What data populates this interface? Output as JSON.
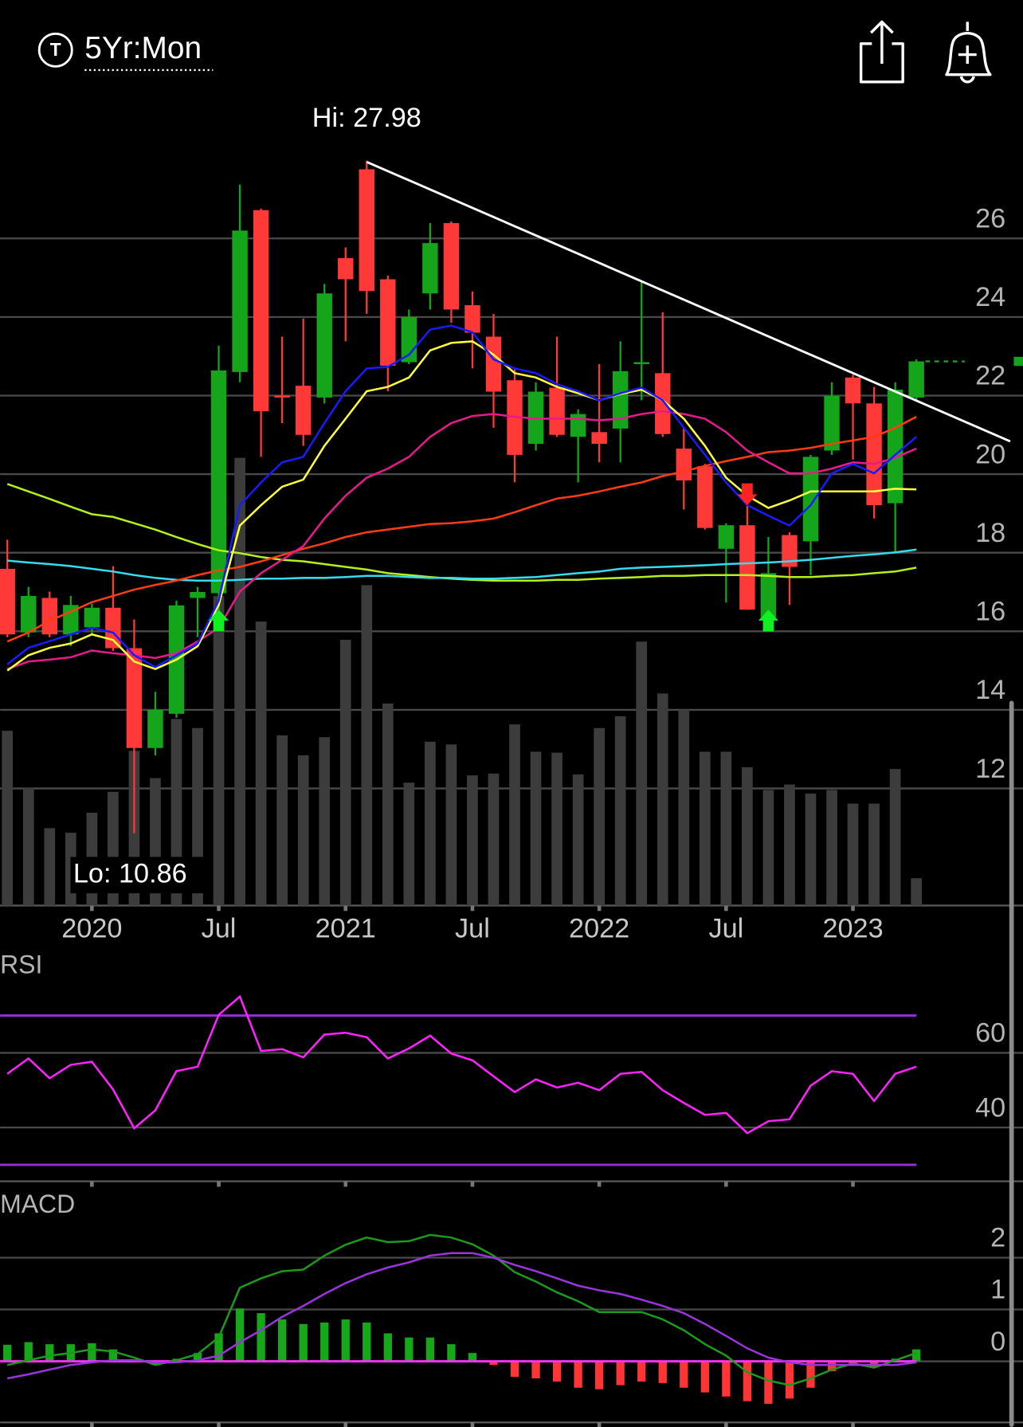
{
  "header": {
    "icon_label": "T",
    "timeframe": "5Yr:Mon"
  },
  "chart_data": {
    "type": "candlestick",
    "categories": [
      "2019-09",
      "2019-10",
      "2019-11",
      "2019-12",
      "2020-01",
      "2020-02",
      "2020-03",
      "2020-04",
      "2020-05",
      "2020-06",
      "2020-07",
      "2020-08",
      "2020-09",
      "2020-10",
      "2020-11",
      "2020-12",
      "2021-01",
      "2021-02",
      "2021-03",
      "2021-04",
      "2021-05",
      "2021-06",
      "2021-07",
      "2021-08",
      "2021-09",
      "2021-10",
      "2021-11",
      "2021-12",
      "2022-01",
      "2022-02",
      "2022-03",
      "2022-04",
      "2022-05",
      "2022-06",
      "2022-07",
      "2022-08",
      "2022-09",
      "2022-10",
      "2022-11",
      "2022-12",
      "2023-01",
      "2023-02",
      "2023-03",
      "2023-04"
    ],
    "open": [
      17.59,
      15.97,
      16.85,
      15.92,
      16.1,
      16.6,
      15.57,
      13.03,
      13.9,
      16.85,
      16.97,
      22.6,
      26.72,
      22.0,
      22.25,
      21.95,
      25.5,
      27.76,
      24.96,
      22.85,
      24.6,
      26.39,
      24.3,
      23.5,
      22.39,
      20.77,
      22.2,
      20.95,
      21.07,
      21.16,
      22.8,
      22.57,
      20.65,
      20.2,
      18.1,
      18.7,
      16.36,
      18.45,
      18.29,
      20.6,
      22.46,
      21.8,
      19.26,
      21.95
    ],
    "high": [
      18.33,
      17.13,
      17.01,
      16.9,
      16.7,
      17.66,
      16.3,
      14.46,
      16.78,
      17.13,
      23.27,
      27.37,
      26.76,
      23.5,
      23.96,
      24.84,
      25.77,
      27.98,
      25.05,
      24.19,
      26.39,
      26.43,
      24.65,
      24.08,
      22.69,
      22.34,
      23.5,
      21.65,
      22.8,
      23.38,
      24.89,
      24.12,
      21.18,
      20.26,
      18.75,
      19.21,
      18.4,
      18.52,
      20.49,
      22.34,
      22.53,
      22.22,
      22.34,
      22.92
    ],
    "low": [
      15.85,
      15.85,
      15.85,
      15.62,
      15.9,
      15.5,
      10.86,
      12.84,
      13.8,
      15.85,
      16.32,
      22.34,
      20.44,
      21.3,
      20.72,
      21.8,
      23.38,
      24.08,
      22.11,
      22.8,
      24.19,
      23.85,
      22.69,
      21.18,
      19.79,
      20.6,
      20.95,
      19.79,
      20.3,
      20.3,
      21.88,
      20.95,
      19.1,
      18.59,
      16.73,
      16.55,
      16.32,
      16.67,
      17.43,
      20.49,
      20.37,
      18.87,
      17.98,
      21.88
    ],
    "close": [
      15.92,
      16.9,
      15.92,
      16.67,
      16.6,
      15.57,
      13.03,
      14.0,
      16.66,
      17.0,
      22.64,
      26.2,
      21.6,
      21.95,
      21.0,
      24.6,
      24.96,
      24.66,
      22.76,
      24.0,
      25.88,
      24.19,
      23.6,
      22.1,
      20.49,
      22.1,
      21.0,
      21.53,
      20.77,
      22.62,
      22.85,
      21.02,
      19.84,
      18.63,
      18.7,
      16.55,
      17.48,
      17.64,
      20.44,
      21.99,
      21.8,
      19.21,
      22.15,
      22.87
    ],
    "up_color": "#15a51a",
    "down_color": "#ff3838",
    "ylim": [
      9.02,
      29.52
    ],
    "yticks": [
      12,
      14,
      16,
      18,
      20,
      22,
      24,
      26
    ],
    "grid": true,
    "xticks": [
      {
        "value": "2020-01",
        "label": "2020"
      },
      {
        "value": "2020-07",
        "label": "Jul"
      },
      {
        "value": "2021-01",
        "label": "2021"
      },
      {
        "value": "2021-07",
        "label": "Jul"
      },
      {
        "value": "2022-01",
        "label": "2022"
      },
      {
        "value": "2022-07",
        "label": "Jul"
      },
      {
        "value": "2023-01",
        "label": "2023"
      }
    ],
    "hi_label": "Hi: 27.98",
    "lo_label": "Lo: 10.86",
    "buy_signals": [
      "2020-07",
      "2022-09"
    ],
    "sell_signals": [
      "2022-08"
    ],
    "buy_color": "#11ee22",
    "sell_color": "#ff2222",
    "moving_averages": [
      {
        "color": "#b4f01e",
        "values": [
          19.75,
          19.56,
          19.37,
          19.17,
          18.98,
          18.91,
          18.75,
          18.59,
          18.4,
          18.22,
          18.06,
          17.99,
          17.89,
          17.82,
          17.78,
          17.71,
          17.64,
          17.57,
          17.48,
          17.43,
          17.38,
          17.34,
          17.31,
          17.29,
          17.29,
          17.29,
          17.31,
          17.31,
          17.34,
          17.36,
          17.38,
          17.41,
          17.41,
          17.43,
          17.43,
          17.43,
          17.41,
          17.38,
          17.38,
          17.41,
          17.43,
          17.48,
          17.52,
          17.62
        ]
      },
      {
        "color": "#36dcec",
        "values": [
          17.8,
          17.75,
          17.71,
          17.66,
          17.59,
          17.52,
          17.43,
          17.36,
          17.31,
          17.29,
          17.29,
          17.31,
          17.34,
          17.34,
          17.36,
          17.36,
          17.38,
          17.41,
          17.41,
          17.38,
          17.36,
          17.36,
          17.34,
          17.34,
          17.36,
          17.38,
          17.43,
          17.48,
          17.52,
          17.59,
          17.62,
          17.64,
          17.66,
          17.68,
          17.71,
          17.73,
          17.75,
          17.78,
          17.82,
          17.87,
          17.92,
          17.96,
          18.01,
          18.08
        ]
      },
      {
        "color": "#ff3c14",
        "values": [
          15.74,
          15.97,
          16.27,
          16.5,
          16.74,
          16.9,
          17.06,
          17.18,
          17.29,
          17.43,
          17.55,
          17.64,
          17.78,
          17.94,
          18.1,
          18.24,
          18.4,
          18.52,
          18.59,
          18.66,
          18.73,
          18.75,
          18.8,
          18.87,
          19.03,
          19.21,
          19.38,
          19.45,
          19.56,
          19.68,
          19.79,
          19.95,
          20.07,
          20.21,
          20.33,
          20.44,
          20.56,
          20.6,
          20.67,
          20.77,
          20.86,
          20.95,
          21.18,
          21.46
        ]
      },
      {
        "color": "#e8198c",
        "values": [
          15.04,
          15.23,
          15.28,
          15.34,
          15.51,
          15.44,
          15.39,
          15.32,
          15.44,
          15.74,
          16.09,
          17.01,
          17.48,
          17.82,
          18.17,
          18.87,
          19.45,
          19.91,
          20.14,
          20.44,
          20.95,
          21.3,
          21.48,
          21.53,
          21.46,
          21.41,
          21.41,
          21.41,
          21.37,
          21.41,
          21.53,
          21.6,
          21.53,
          21.41,
          21.07,
          20.6,
          20.3,
          20.02,
          20.02,
          20.14,
          20.3,
          20.26,
          20.42,
          20.65
        ]
      },
      {
        "color": "#ffff3c",
        "values": [
          15.0,
          15.39,
          15.58,
          15.69,
          15.92,
          15.78,
          15.23,
          15.04,
          15.28,
          15.62,
          16.67,
          18.69,
          19.21,
          19.68,
          19.86,
          20.72,
          21.41,
          22.11,
          22.22,
          22.46,
          23.15,
          23.34,
          23.38,
          23.04,
          22.57,
          22.46,
          22.22,
          22.06,
          21.88,
          22.04,
          22.15,
          21.88,
          21.41,
          20.72,
          19.91,
          19.45,
          19.14,
          19.33,
          19.56,
          19.56,
          19.56,
          19.56,
          19.63,
          19.61
        ]
      },
      {
        "color": "#1a1aff",
        "values": [
          15.16,
          15.58,
          15.75,
          15.92,
          16.09,
          15.97,
          15.39,
          15.09,
          15.39,
          15.69,
          16.78,
          19.21,
          19.79,
          20.3,
          20.44,
          21.3,
          22.11,
          22.69,
          22.73,
          23.04,
          23.68,
          23.78,
          23.61,
          22.92,
          22.69,
          22.57,
          22.29,
          22.11,
          21.88,
          22.06,
          22.2,
          21.88,
          21.18,
          20.49,
          19.79,
          19.21,
          18.94,
          18.69,
          19.21,
          20.02,
          20.26,
          20.02,
          20.49,
          20.95
        ]
      }
    ],
    "volume": {
      "color": "#3c3c3c",
      "ylim": [
        0,
        885
      ],
      "values": [
        192,
        129,
        85,
        80,
        102,
        125,
        170,
        140,
        205,
        195,
        340,
        492,
        312,
        187,
        165,
        185,
        292,
        352,
        222,
        135,
        180,
        177,
        143,
        145,
        199,
        169,
        168,
        144,
        195,
        208,
        290,
        233,
        215,
        169,
        169,
        152,
        127,
        133,
        123,
        127,
        112,
        112,
        150,
        30
      ]
    },
    "rsi": {
      "title": "RSI",
      "color": "#ff22ff",
      "ylim": [
        25.6,
        88.5
      ],
      "yticks": [
        40,
        60
      ],
      "levels": [
        70,
        30
      ],
      "level_color": "#9a2ed2",
      "values": [
        54.4,
        58.5,
        53.2,
        56.8,
        57.6,
        50.2,
        39.8,
        44.6,
        55.1,
        56.3,
        70.2,
        75.1,
        60.5,
        61.0,
        58.8,
        64.9,
        65.4,
        64.2,
        58.5,
        61.2,
        64.6,
        59.8,
        58.0,
        53.7,
        49.5,
        52.9,
        50.7,
        52.0,
        50.0,
        54.4,
        54.9,
        50.0,
        46.6,
        43.4,
        43.9,
        38.5,
        41.7,
        42.2,
        51.2,
        55.1,
        54.4,
        47.1,
        54.4,
        56.3
      ]
    },
    "macd": {
      "title": "MACD",
      "ylim": [
        -1.18,
        3.44
      ],
      "yticks": [
        0,
        1,
        2
      ],
      "zero_color": "#ff33ff",
      "macd_color": "#1b9a1b",
      "signal_color": "#9a34dc",
      "hist_up_color": "#17a81a",
      "hist_down_color": "#ff3434",
      "macd": [
        -0.07,
        0.02,
        0.11,
        0.16,
        0.23,
        0.19,
        0.07,
        -0.07,
        0.02,
        0.14,
        0.46,
        1.42,
        1.6,
        1.74,
        1.77,
        2.04,
        2.25,
        2.39,
        2.3,
        2.32,
        2.44,
        2.39,
        2.26,
        2.04,
        1.72,
        1.54,
        1.33,
        1.16,
        0.95,
        0.95,
        0.95,
        0.81,
        0.6,
        0.33,
        0.11,
        -0.21,
        -0.37,
        -0.46,
        -0.33,
        -0.16,
        -0.04,
        -0.12,
        0.02,
        0.16
      ],
      "signal": [
        -0.33,
        -0.25,
        -0.16,
        -0.07,
        -0.02,
        0.02,
        0.02,
        -0.02,
        -0.02,
        0.02,
        0.11,
        0.37,
        0.6,
        0.86,
        1.07,
        1.3,
        1.51,
        1.68,
        1.81,
        1.91,
        2.04,
        2.09,
        2.09,
        2.0,
        1.86,
        1.74,
        1.6,
        1.46,
        1.37,
        1.3,
        1.19,
        1.07,
        0.93,
        0.72,
        0.49,
        0.25,
        0.07,
        -0.02,
        -0.07,
        -0.07,
        -0.07,
        -0.07,
        -0.07,
        -0.02
      ],
      "histogram": [
        0.32,
        0.37,
        0.33,
        0.33,
        0.35,
        0.23,
        0.02,
        -0.07,
        0.05,
        0.16,
        0.54,
        1.02,
        0.93,
        0.81,
        0.72,
        0.75,
        0.81,
        0.75,
        0.54,
        0.46,
        0.46,
        0.33,
        0.16,
        -0.07,
        -0.3,
        -0.33,
        -0.39,
        -0.51,
        -0.54,
        -0.46,
        -0.39,
        -0.42,
        -0.51,
        -0.6,
        -0.68,
        -0.77,
        -0.82,
        -0.72,
        -0.51,
        -0.19,
        -0.07,
        -0.12,
        0.05,
        0.23
      ]
    }
  }
}
